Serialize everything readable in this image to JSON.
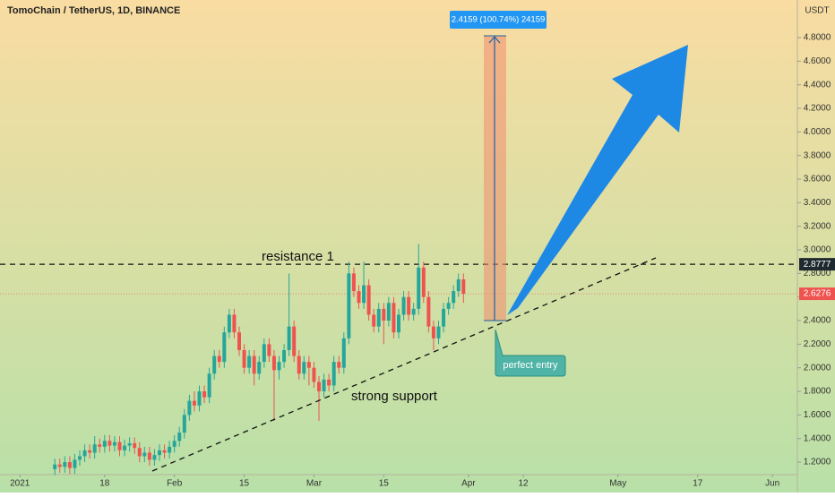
{
  "chart_data": {
    "type": "candlestick",
    "title": "TomoChain / TetherUS, 1D, BINANCE",
    "unit": "USDT",
    "x": [
      "2021-01-08",
      "2021-01-09",
      "2021-01-10",
      "2021-01-11",
      "2021-01-12",
      "2021-01-13",
      "2021-01-14",
      "2021-01-15",
      "2021-01-16",
      "2021-01-17",
      "2021-01-18",
      "2021-01-19",
      "2021-01-20",
      "2021-01-21",
      "2021-01-22",
      "2021-01-23",
      "2021-01-24",
      "2021-01-25",
      "2021-01-26",
      "2021-01-27",
      "2021-01-28",
      "2021-01-29",
      "2021-01-30",
      "2021-01-31",
      "2021-02-01",
      "2021-02-02",
      "2021-02-03",
      "2021-02-04",
      "2021-02-05",
      "2021-02-06",
      "2021-02-07",
      "2021-02-08",
      "2021-02-09",
      "2021-02-10",
      "2021-02-11",
      "2021-02-12",
      "2021-02-13",
      "2021-02-14",
      "2021-02-15",
      "2021-02-16",
      "2021-02-17",
      "2021-02-18",
      "2021-02-19",
      "2021-02-20",
      "2021-02-21",
      "2021-02-22",
      "2021-02-23",
      "2021-02-24",
      "2021-02-25",
      "2021-02-26",
      "2021-02-27",
      "2021-02-28",
      "2021-03-01",
      "2021-03-02",
      "2021-03-03",
      "2021-03-04",
      "2021-03-05",
      "2021-03-06",
      "2021-03-07",
      "2021-03-08",
      "2021-03-09",
      "2021-03-10",
      "2021-03-11",
      "2021-03-12",
      "2021-03-13",
      "2021-03-14",
      "2021-03-15",
      "2021-03-16",
      "2021-03-17",
      "2021-03-18",
      "2021-03-19",
      "2021-03-20",
      "2021-03-21",
      "2021-03-22",
      "2021-03-23",
      "2021-03-24",
      "2021-03-25",
      "2021-03-26",
      "2021-03-27",
      "2021-03-28",
      "2021-03-29",
      "2021-03-30",
      "2021-03-31"
    ],
    "open": [
      1.14,
      1.18,
      1.16,
      1.2,
      1.15,
      1.22,
      1.25,
      1.3,
      1.28,
      1.35,
      1.33,
      1.38,
      1.34,
      1.37,
      1.3,
      1.34,
      1.36,
      1.32,
      1.25,
      1.28,
      1.22,
      1.26,
      1.3,
      1.28,
      1.33,
      1.38,
      1.45,
      1.6,
      1.72,
      1.68,
      1.8,
      1.75,
      1.95,
      2.1,
      2.05,
      2.3,
      2.45,
      2.3,
      2.15,
      2.0,
      2.1,
      1.95,
      2.05,
      2.2,
      2.1,
      1.98,
      2.05,
      2.15,
      2.35,
      2.1,
      1.95,
      2.05,
      2.0,
      1.88,
      1.8,
      1.9,
      1.85,
      2.05,
      2.0,
      2.25,
      2.8,
      2.65,
      2.55,
      2.7,
      2.45,
      2.35,
      2.5,
      2.4,
      2.55,
      2.3,
      2.45,
      2.6,
      2.45,
      2.5,
      2.85,
      2.6,
      2.35,
      2.25,
      2.35,
      2.5,
      2.55,
      2.65,
      2.75
    ],
    "high": [
      1.23,
      1.23,
      1.25,
      1.25,
      1.27,
      1.3,
      1.35,
      1.35,
      1.42,
      1.4,
      1.43,
      1.43,
      1.42,
      1.42,
      1.39,
      1.41,
      1.41,
      1.37,
      1.33,
      1.33,
      1.31,
      1.35,
      1.35,
      1.38,
      1.43,
      1.5,
      1.65,
      1.77,
      1.8,
      1.85,
      1.85,
      2.0,
      2.15,
      2.15,
      2.35,
      2.5,
      2.5,
      2.35,
      2.2,
      2.15,
      2.15,
      2.1,
      2.25,
      2.25,
      2.15,
      2.1,
      2.2,
      2.8,
      2.4,
      2.15,
      2.1,
      2.1,
      2.05,
      1.93,
      1.95,
      1.95,
      2.1,
      2.1,
      2.3,
      2.9,
      2.85,
      2.7,
      2.9,
      2.75,
      2.5,
      2.55,
      2.55,
      2.6,
      2.6,
      2.5,
      2.65,
      2.65,
      2.55,
      3.05,
      2.9,
      2.65,
      2.4,
      2.4,
      2.55,
      2.6,
      2.7,
      2.8,
      2.8
    ],
    "low": [
      1.09,
      1.11,
      1.11,
      1.1,
      1.1,
      1.17,
      1.2,
      1.23,
      1.23,
      1.28,
      1.28,
      1.29,
      1.29,
      1.25,
      1.25,
      1.29,
      1.27,
      1.2,
      1.2,
      1.17,
      1.17,
      1.21,
      1.23,
      1.23,
      1.28,
      1.33,
      1.4,
      1.55,
      1.63,
      1.63,
      1.7,
      1.7,
      1.9,
      2.0,
      2.0,
      2.25,
      2.25,
      2.1,
      1.95,
      1.95,
      1.85,
      1.9,
      2.0,
      2.05,
      1.55,
      1.9,
      2.0,
      2.1,
      2.05,
      1.9,
      1.9,
      1.85,
      1.83,
      1.55,
      1.75,
      1.8,
      1.8,
      1.95,
      1.95,
      2.2,
      2.6,
      2.5,
      2.5,
      2.4,
      2.3,
      2.3,
      2.2,
      2.35,
      2.25,
      2.25,
      2.4,
      2.4,
      2.4,
      2.45,
      2.55,
      2.3,
      2.15,
      2.2,
      2.3,
      2.45,
      2.5,
      2.6,
      2.55
    ],
    "close": [
      1.18,
      1.16,
      1.2,
      1.15,
      1.22,
      1.25,
      1.3,
      1.28,
      1.35,
      1.33,
      1.38,
      1.34,
      1.37,
      1.3,
      1.34,
      1.36,
      1.32,
      1.25,
      1.28,
      1.22,
      1.26,
      1.3,
      1.28,
      1.33,
      1.38,
      1.45,
      1.6,
      1.72,
      1.68,
      1.8,
      1.75,
      1.95,
      2.1,
      2.05,
      2.3,
      2.45,
      2.3,
      2.15,
      2.0,
      2.1,
      1.95,
      2.05,
      2.2,
      2.1,
      1.98,
      2.05,
      2.15,
      2.35,
      2.1,
      1.95,
      2.05,
      2.0,
      1.88,
      1.8,
      1.9,
      1.85,
      2.05,
      2.0,
      2.25,
      2.8,
      2.65,
      2.55,
      2.7,
      2.45,
      2.35,
      2.5,
      2.4,
      2.55,
      2.3,
      2.45,
      2.6,
      2.45,
      2.5,
      2.85,
      2.6,
      2.35,
      2.25,
      2.35,
      2.5,
      2.55,
      2.65,
      2.75,
      2.6276
    ],
    "up_color": "#26a69a",
    "down_color": "#ef5350",
    "xlim": [
      "2020-12-28",
      "2021-06-06"
    ],
    "xticks": [
      {
        "value": "2021-01-01",
        "label": "2021"
      },
      {
        "value": "2021-01-18",
        "label": "18"
      },
      {
        "value": "2021-02-01",
        "label": "Feb"
      },
      {
        "value": "2021-02-15",
        "label": "15"
      },
      {
        "value": "2021-03-01",
        "label": "Mar"
      },
      {
        "value": "2021-03-15",
        "label": "15"
      },
      {
        "value": "2021-04-01",
        "label": "Apr"
      },
      {
        "value": "2021-04-12",
        "label": "12"
      },
      {
        "value": "2021-05-01",
        "label": "May"
      },
      {
        "value": "2021-05-17",
        "label": "17"
      },
      {
        "value": "2021-06-01",
        "label": "Jun"
      }
    ],
    "ylim": [
      1.094,
      5.119
    ],
    "yticks": [
      {
        "value": 1.2,
        "label": "1.2000"
      },
      {
        "value": 1.4,
        "label": "1.4000"
      },
      {
        "value": 1.6,
        "label": "1.6000"
      },
      {
        "value": 1.8,
        "label": "1.8000"
      },
      {
        "value": 2.0,
        "label": "2.0000"
      },
      {
        "value": 2.2,
        "label": "2.2000"
      },
      {
        "value": 2.4,
        "label": "2.4000"
      },
      {
        "value": 2.6,
        "label": "2.6000"
      },
      {
        "value": 2.8,
        "label": "2.8000"
      },
      {
        "value": 3.0,
        "label": "3.0000"
      },
      {
        "value": 3.2,
        "label": "3.2000"
      },
      {
        "value": 3.4,
        "label": "3.4000"
      },
      {
        "value": 3.6,
        "label": "3.6000"
      },
      {
        "value": 3.8,
        "label": "3.8000"
      },
      {
        "value": 4.0,
        "label": "4.0000"
      },
      {
        "value": 4.2,
        "label": "4.2000"
      },
      {
        "value": 4.4,
        "label": "4.4000"
      },
      {
        "value": 4.6,
        "label": "4.6000"
      },
      {
        "value": 4.8,
        "label": "4.8000"
      }
    ],
    "grid": false,
    "resistance": {
      "value": 2.8777,
      "label": "resistance 1"
    },
    "support_label": "strong support",
    "entry_label": "perfect entry",
    "measure_label": "2.4159 (100.74%) 24159"
  }
}
